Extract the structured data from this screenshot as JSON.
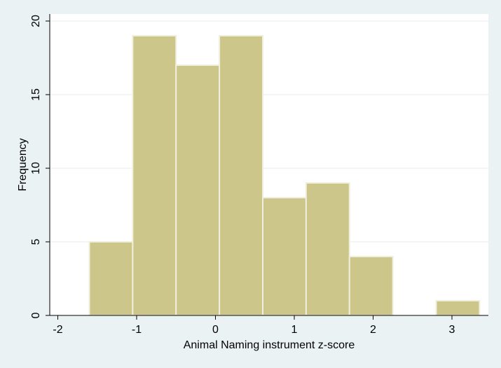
{
  "chart_data": {
    "type": "bar",
    "title": "",
    "xlabel": "Animal Naming instrument z-score",
    "ylabel": "Frequency",
    "xlim": [
      -2.1,
      3.35
    ],
    "ylim": [
      0,
      20
    ],
    "xticks": [
      -2,
      -1,
      0,
      1,
      2,
      3
    ],
    "yticks": [
      0,
      5,
      10,
      15,
      20
    ],
    "grid": "horizontal",
    "legend": "none",
    "bins": [
      {
        "x0": -1.6,
        "x1": -1.05,
        "value": 5
      },
      {
        "x0": -1.05,
        "x1": -0.5,
        "value": 19
      },
      {
        "x0": -0.5,
        "x1": 0.05,
        "value": 17
      },
      {
        "x0": 0.05,
        "x1": 0.6,
        "value": 19
      },
      {
        "x0": 0.6,
        "x1": 1.15,
        "value": 8
      },
      {
        "x0": 1.15,
        "x1": 1.7,
        "value": 9
      },
      {
        "x0": 1.7,
        "x1": 2.25,
        "value": 4
      },
      {
        "x0": 2.25,
        "x1": 2.8,
        "value": 0
      },
      {
        "x0": 2.8,
        "x1": 3.35,
        "value": 1
      }
    ]
  },
  "colors": {
    "background": "#eaf2f3",
    "plot_background": "#ffffff",
    "bar_fill": "#cdc68a",
    "bar_stroke": "#f0eedc",
    "grid": "#e8eeee",
    "axis": "#000000"
  }
}
